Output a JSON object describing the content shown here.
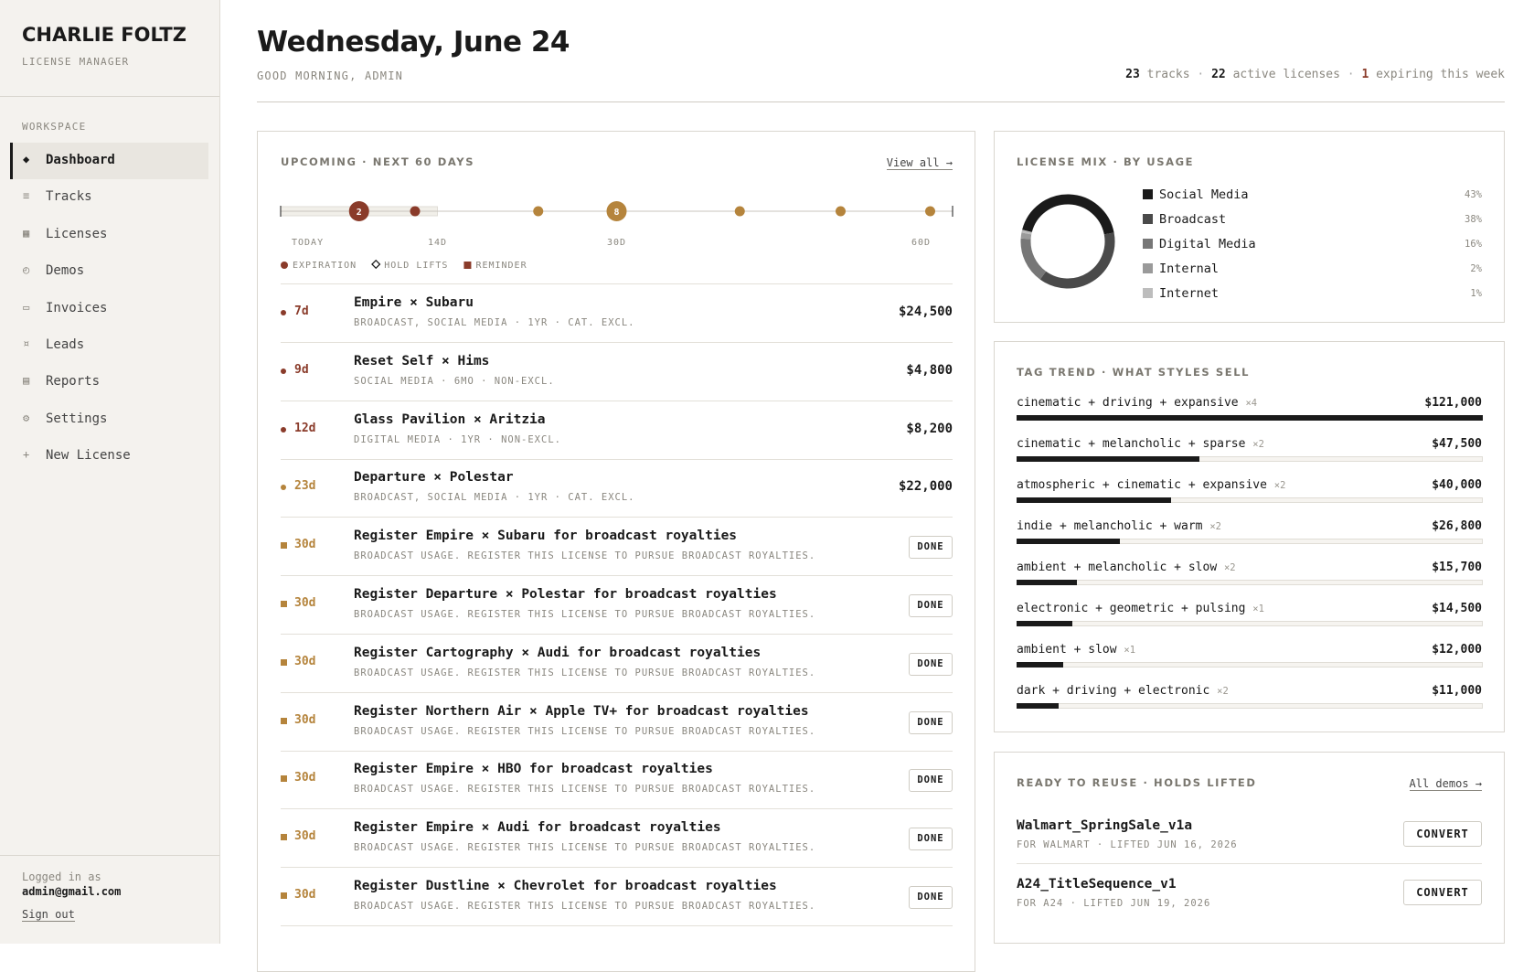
{
  "sidebar": {
    "brand": "CHARLIE FOLTZ",
    "subtitle": "LICENSE MANAGER",
    "section": "WORKSPACE",
    "active_index": 0,
    "nav": [
      {
        "icon": "◆",
        "label": "Dashboard"
      },
      {
        "icon": "≡",
        "label": "Tracks"
      },
      {
        "icon": "▦",
        "label": "Licenses"
      },
      {
        "icon": "◴",
        "label": "Demos"
      },
      {
        "icon": "▭",
        "label": "Invoices"
      },
      {
        "icon": "¤",
        "label": "Leads"
      },
      {
        "icon": "▤",
        "label": "Reports"
      },
      {
        "icon": "⚙",
        "label": "Settings"
      },
      {
        "icon": "+",
        "label": "New License"
      }
    ],
    "footer": {
      "logged_in_label": "Logged in as",
      "email": "admin@gmail.com",
      "sign_out": "Sign out"
    }
  },
  "header": {
    "title": "Wednesday, June 24",
    "greeting": "GOOD MORNING, ADMIN",
    "stats": [
      {
        "value": 23,
        "label": "tracks"
      },
      {
        "value": 22,
        "label": "active licenses"
      },
      {
        "value": 1,
        "label": "expiring this week",
        "color": "#8a3b2a"
      }
    ]
  },
  "upcoming": {
    "title": "UPCOMING · NEXT 60 DAYS",
    "view_all": "View all →",
    "timeline": {
      "xlim": [
        0,
        60
      ],
      "ticks": [
        {
          "value": 0,
          "label": "TODAY"
        },
        {
          "value": 14,
          "label": "14D"
        },
        {
          "value": 30,
          "label": "30D"
        },
        {
          "value": 60,
          "label": "60D"
        }
      ],
      "markers": [
        {
          "day": 7,
          "count": 2,
          "color": "#8a3b2a"
        },
        {
          "day": 12,
          "color": "#8a3b2a"
        },
        {
          "day": 23,
          "color": "#b5843c"
        },
        {
          "day": 30,
          "count": 8,
          "color": "#b5843c"
        },
        {
          "day": 41,
          "color": "#b5843c"
        },
        {
          "day": 50,
          "color": "#b5843c"
        },
        {
          "day": 58,
          "color": "#b5843c"
        }
      ]
    },
    "legend": [
      {
        "shape": "circle",
        "label": "EXPIRATION",
        "color": "#8a3b2a"
      },
      {
        "shape": "diamond",
        "label": "HOLD LIFTS",
        "color": "#1a1a1a"
      },
      {
        "shape": "square",
        "label": "REMINDER",
        "color": "#8a3b2a"
      }
    ],
    "items": [
      {
        "days": "7d",
        "shape": "circle",
        "color": "#8a3b2a",
        "title": "Empire × Subaru",
        "detail": "BROADCAST, SOCIAL MEDIA · 1YR · CAT. EXCL.",
        "amount": "$24,500"
      },
      {
        "days": "9d",
        "shape": "circle",
        "color": "#8a3b2a",
        "title": "Reset Self × Hims",
        "detail": "SOCIAL MEDIA · 6MO · NON-EXCL.",
        "amount": "$4,800"
      },
      {
        "days": "12d",
        "shape": "circle",
        "color": "#8a3b2a",
        "title": "Glass Pavilion × Aritzia",
        "detail": "DIGITAL MEDIA · 1YR · NON-EXCL.",
        "amount": "$8,200"
      },
      {
        "days": "23d",
        "shape": "circle",
        "color": "#b5843c",
        "title": "Departure × Polestar",
        "detail": "BROADCAST, SOCIAL MEDIA · 1YR · CAT. EXCL.",
        "amount": "$22,000"
      },
      {
        "days": "30d",
        "shape": "square",
        "color": "#b5843c",
        "title": "Register Empire × Subaru for broadcast royalties",
        "detail": "BROADCAST USAGE. REGISTER THIS LICENSE TO PURSUE BROADCAST ROYALTIES.",
        "action": "DONE"
      },
      {
        "days": "30d",
        "shape": "square",
        "color": "#b5843c",
        "title": "Register Departure × Polestar for broadcast royalties",
        "detail": "BROADCAST USAGE. REGISTER THIS LICENSE TO PURSUE BROADCAST ROYALTIES.",
        "action": "DONE"
      },
      {
        "days": "30d",
        "shape": "square",
        "color": "#b5843c",
        "title": "Register Cartography × Audi for broadcast royalties",
        "detail": "BROADCAST USAGE. REGISTER THIS LICENSE TO PURSUE BROADCAST ROYALTIES.",
        "action": "DONE"
      },
      {
        "days": "30d",
        "shape": "square",
        "color": "#b5843c",
        "title": "Register Northern Air × Apple TV+ for broadcast royalties",
        "detail": "BROADCAST USAGE. REGISTER THIS LICENSE TO PURSUE BROADCAST ROYALTIES.",
        "action": "DONE"
      },
      {
        "days": "30d",
        "shape": "square",
        "color": "#b5843c",
        "title": "Register Empire × HBO for broadcast royalties",
        "detail": "BROADCAST USAGE. REGISTER THIS LICENSE TO PURSUE BROADCAST ROYALTIES.",
        "action": "DONE"
      },
      {
        "days": "30d",
        "shape": "square",
        "color": "#b5843c",
        "title": "Register Empire × Audi for broadcast royalties",
        "detail": "BROADCAST USAGE. REGISTER THIS LICENSE TO PURSUE BROADCAST ROYALTIES.",
        "action": "DONE"
      },
      {
        "days": "30d",
        "shape": "square",
        "color": "#b5843c",
        "title": "Register Dustline × Chevrolet for broadcast royalties",
        "detail": "BROADCAST USAGE. REGISTER THIS LICENSE TO PURSUE BROADCAST ROYALTIES.",
        "action": "DONE"
      }
    ]
  },
  "license_mix": {
    "title": "LICENSE MIX · BY USAGE",
    "categories": [
      "Social Media",
      "Broadcast",
      "Digital Media",
      "Internal",
      "Internet"
    ],
    "values": [
      43,
      38,
      16,
      2,
      1
    ],
    "value_labels": [
      "43%",
      "38%",
      "16%",
      "2%",
      "1%"
    ],
    "colors": [
      "#1a1a1a",
      "#4a4a4a",
      "#777777",
      "#9a9a9a",
      "#bdbdbd"
    ]
  },
  "tag_trend": {
    "title": "TAG TREND · WHAT STYLES SELL",
    "categories": [
      "cinematic + driving + expansive",
      "cinematic + melancholic + sparse",
      "atmospheric + cinematic + expansive",
      "indie + melancholic + warm",
      "ambient + melancholic + slow",
      "electronic + geometric + pulsing",
      "ambient + slow",
      "dark + driving + electronic"
    ],
    "counts": [
      "×4",
      "×2",
      "×2",
      "×2",
      "×2",
      "×1",
      "×1",
      "×2"
    ],
    "values": [
      121000,
      47500,
      40000,
      26800,
      15700,
      14500,
      12000,
      11000
    ],
    "value_labels": [
      "$121,000",
      "$47,500",
      "$40,000",
      "$26,800",
      "$15,700",
      "$14,500",
      "$12,000",
      "$11,000"
    ],
    "color": "#1a1a1a"
  },
  "reuse": {
    "title": "READY TO REUSE · HOLDS LIFTED",
    "link": "All demos →",
    "items": [
      {
        "name": "Walmart_SpringSale_v1a",
        "detail": "FOR WALMART · LIFTED JUN 16, 2026",
        "action": "CONVERT"
      },
      {
        "name": "A24_TitleSequence_v1",
        "detail": "FOR A24 · LIFTED JUN 19, 2026",
        "action": "CONVERT"
      }
    ]
  }
}
